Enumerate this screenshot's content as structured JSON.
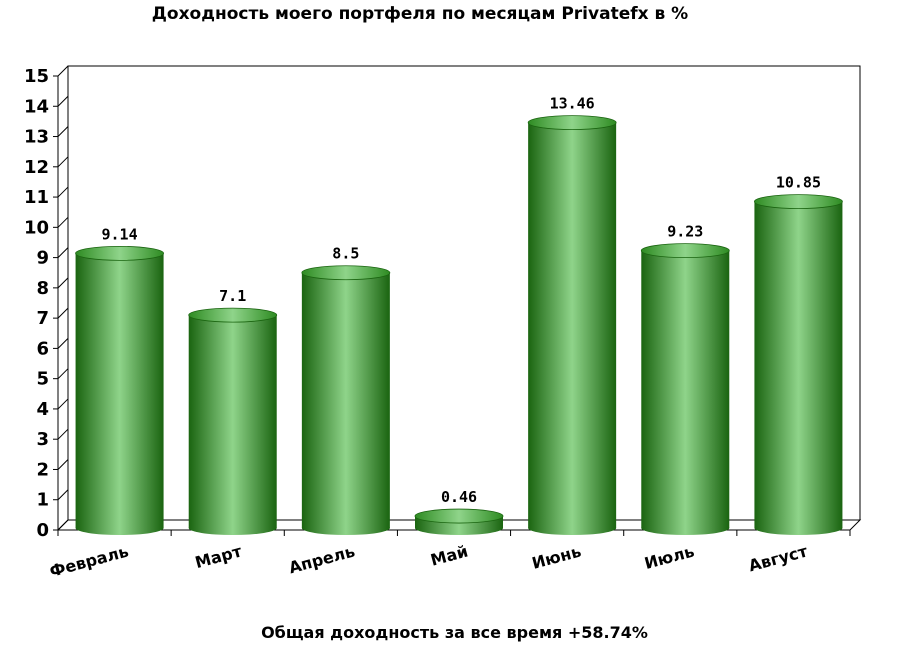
{
  "chart_data": {
    "type": "bar",
    "title": "Доходность моего портфеля по месяцам Privatefx в %",
    "footer": "Общая доходность за все время +58.74%",
    "categories": [
      "Февраль",
      "Март",
      "Апрель",
      "Май",
      "Июнь",
      "Июль",
      "Август"
    ],
    "values": [
      9.14,
      7.1,
      8.5,
      0.46,
      13.46,
      9.23,
      10.85
    ],
    "value_labels": [
      "9.14",
      "7.1",
      "8.5",
      "0.46",
      "13.46",
      "9.23",
      "10.85"
    ],
    "ylim": [
      0,
      15
    ],
    "yticks": [
      0,
      1,
      2,
      3,
      4,
      5,
      6,
      7,
      8,
      9,
      10,
      11,
      12,
      13,
      14,
      15
    ],
    "grid": false,
    "legend": "none",
    "bar_color": "#2e8b22",
    "bar_dark_color": "#1a6410",
    "bar_light_color": "#8fd48a"
  }
}
